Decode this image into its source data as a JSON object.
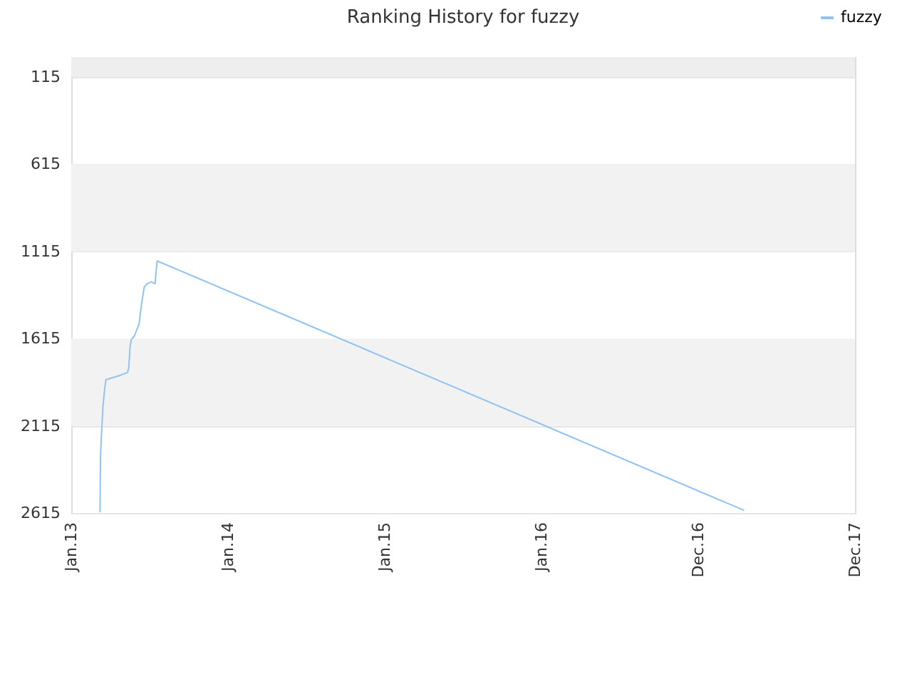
{
  "chart_data": {
    "type": "line",
    "title": "Ranking History for fuzzy",
    "x": [
      "2013-03-09",
      "2013-03-10",
      "2013-03-12",
      "2013-03-16",
      "2013-03-20",
      "2013-03-23",
      "2013-04-20",
      "2013-05-12",
      "2013-05-15",
      "2013-05-18",
      "2013-05-21",
      "2013-05-28",
      "2013-06-08",
      "2013-06-14",
      "2013-06-20",
      "2013-06-27",
      "2013-07-06",
      "2013-07-15",
      "2013-07-17",
      "2013-07-20",
      "2017-04-17"
    ],
    "series": [
      {
        "name": "fuzzy",
        "color": "#90c3f3",
        "values": [
          2610,
          2300,
          2180,
          2000,
          1900,
          1850,
          1830,
          1810,
          1780,
          1660,
          1620,
          1600,
          1530,
          1410,
          1320,
          1300,
          1290,
          1300,
          1250,
          1170,
          2600
        ]
      }
    ],
    "xlim": [
      "2013-01-01",
      "2017-12-31"
    ],
    "xticks": [
      {
        "value": "2013-01-01",
        "label": "Jan.13"
      },
      {
        "value": "2014-01-01",
        "label": "Jan.14"
      },
      {
        "value": "2015-01-01",
        "label": "Jan.15"
      },
      {
        "value": "2016-01-01",
        "label": "Jan.16"
      },
      {
        "value": "2016-12-31",
        "label": "Dec.16"
      },
      {
        "value": "2017-12-31",
        "label": "Dec.17"
      }
    ],
    "ylim": [
      2615,
      1
    ],
    "yticks": [
      115,
      615,
      1115,
      1615,
      2115,
      2615
    ],
    "grid": "y",
    "legend": "top right",
    "bands": [
      {
        "axis": "y",
        "from": 1,
        "to": 115,
        "color": "#eeeeee"
      },
      {
        "axis": "y",
        "from": 615,
        "to": 1115,
        "color": "#f2f2f2"
      },
      {
        "axis": "y",
        "from": 1615,
        "to": 2115,
        "color": "#f2f2f2"
      }
    ]
  }
}
